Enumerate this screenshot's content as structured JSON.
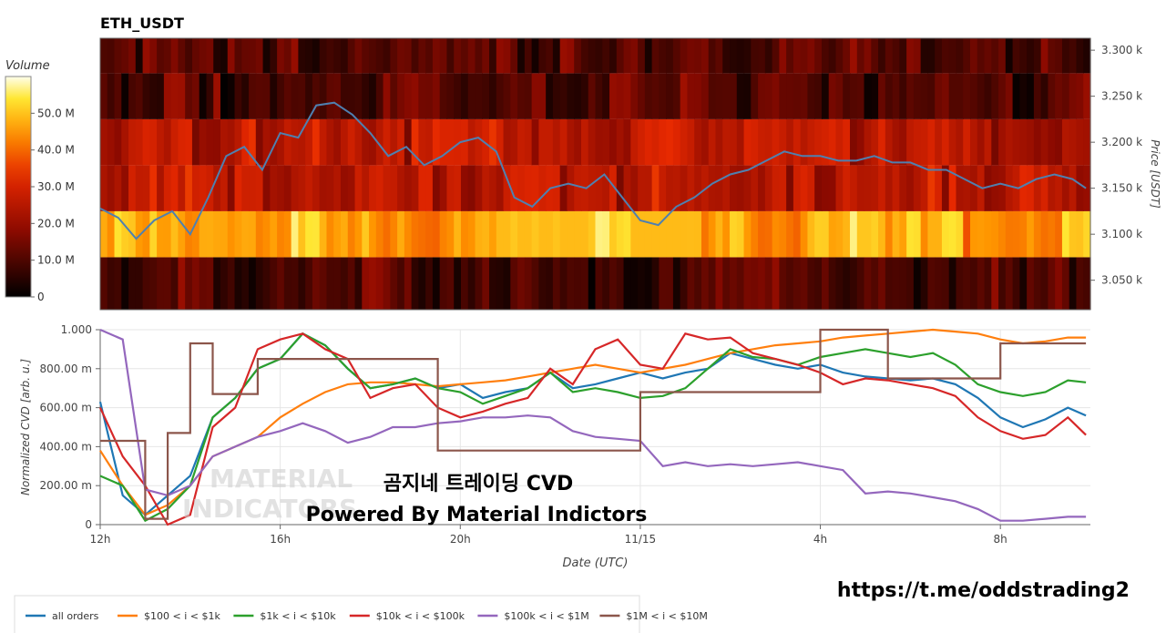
{
  "title": "ETH_USDT",
  "link": "https://t.me/oddstrading2",
  "watermark": {
    "line1": "곰지네 트레이딩 CVD",
    "line2": "Powered By Material Indictors",
    "logo_line1": "MATERIAL",
    "logo_line2": "INDICATORS"
  },
  "colors": {
    "all": "#1f77b4",
    "s100_1k": "#ff7f0e",
    "s1k_10k": "#2ca02c",
    "s10k_100k": "#d62728",
    "s100k_1m": "#9467bd",
    "s1m_10m": "#8c564b",
    "price_line": "#4f80b0"
  },
  "chart_data": [
    {
      "type": "heatmap",
      "title": "ETH_USDT",
      "ylabel": "Price [USDT]",
      "y_ticks": [
        "3.050 k",
        "3.100 k",
        "3.150 k",
        "3.200 k",
        "3.250 k",
        "3.300 k"
      ],
      "y_tick_values": [
        3050,
        3100,
        3150,
        3200,
        3250,
        3300
      ],
      "ylim": [
        3018,
        3313
      ],
      "colorbar": {
        "label": "Volume",
        "ticks": [
          "0",
          "10.0 M",
          "20.0 M",
          "30.0 M",
          "40.0 M",
          "50.0 M"
        ],
        "tick_values": [
          0,
          10,
          20,
          30,
          40,
          50
        ],
        "range": [
          0,
          60
        ]
      },
      "price_bands": [
        {
          "low": 3018,
          "high": 3075,
          "volume_profile": "low"
        },
        {
          "low": 3075,
          "high": 3125,
          "volume_profile": "high"
        },
        {
          "low": 3125,
          "high": 3175,
          "volume_profile": "medium"
        },
        {
          "low": 3175,
          "high": 3225,
          "volume_profile": "medium"
        },
        {
          "low": 3225,
          "high": 3275,
          "volume_profile": "low"
        },
        {
          "low": 3275,
          "high": 3313,
          "volume_profile": "low"
        }
      ],
      "price_series": {
        "name": "price",
        "x": [
          12,
          12.4,
          12.8,
          13.2,
          13.6,
          14,
          14.4,
          14.8,
          15.2,
          15.6,
          16,
          16.4,
          16.8,
          17.2,
          17.6,
          18,
          18.4,
          18.8,
          19.2,
          19.6,
          20,
          20.4,
          20.8,
          21.2,
          21.6,
          22,
          22.4,
          22.8,
          23.2,
          23.6,
          24,
          24.4,
          24.8,
          25.2,
          25.6,
          26,
          26.4,
          26.8,
          27.2,
          27.6,
          28,
          28.4,
          28.8,
          29.2,
          29.6,
          30,
          30.4,
          30.8,
          31.2,
          31.6,
          32,
          32.4,
          32.8,
          33.2,
          33.6,
          33.9
        ],
        "y": [
          3128,
          3118,
          3095,
          3115,
          3125,
          3100,
          3140,
          3185,
          3195,
          3170,
          3210,
          3205,
          3240,
          3243,
          3230,
          3210,
          3185,
          3195,
          3175,
          3185,
          3200,
          3205,
          3190,
          3140,
          3130,
          3150,
          3155,
          3150,
          3165,
          3140,
          3115,
          3110,
          3130,
          3140,
          3155,
          3165,
          3170,
          3180,
          3190,
          3185,
          3185,
          3180,
          3180,
          3185,
          3178,
          3178,
          3170,
          3170,
          3160,
          3150,
          3155,
          3150,
          3160,
          3165,
          3160,
          3150
        ]
      }
    },
    {
      "type": "line",
      "xlabel": "Date (UTC)",
      "ylabel": "Normalized CVD [arb. u.]",
      "x_ticks": [
        "12h",
        "16h",
        "20h",
        "11/15",
        "4h",
        "8h"
      ],
      "x_tick_values": [
        12,
        16,
        20,
        24,
        28,
        32
      ],
      "xlim": [
        12,
        34
      ],
      "y_ticks": [
        "0",
        "200.00 m",
        "400.00 m",
        "600.00 m",
        "800.00 m",
        "1.000"
      ],
      "y_tick_values": [
        0,
        0.2,
        0.4,
        0.6,
        0.8,
        1.0
      ],
      "ylim": [
        0,
        1.0
      ],
      "x": [
        12,
        12.5,
        13,
        13.5,
        14,
        14.5,
        15,
        15.5,
        16,
        16.5,
        17,
        17.5,
        18,
        18.5,
        19,
        19.5,
        20,
        20.5,
        21,
        21.5,
        22,
        22.5,
        23,
        23.5,
        24,
        24.5,
        25,
        25.5,
        26,
        26.5,
        27,
        27.5,
        28,
        28.5,
        29,
        29.5,
        30,
        30.5,
        31,
        31.5,
        32,
        32.5,
        33,
        33.5,
        33.9
      ],
      "legend_position": "bottom-left",
      "series": [
        {
          "name": "all orders",
          "color_key": "all",
          "values": [
            0.63,
            0.15,
            0.05,
            0.15,
            0.25,
            0.55,
            0.65,
            0.8,
            0.85,
            0.98,
            0.92,
            0.8,
            0.7,
            0.72,
            0.75,
            0.7,
            0.72,
            0.65,
            0.68,
            0.7,
            0.78,
            0.7,
            0.72,
            0.75,
            0.78,
            0.75,
            0.78,
            0.8,
            0.88,
            0.85,
            0.82,
            0.8,
            0.82,
            0.78,
            0.76,
            0.75,
            0.74,
            0.75,
            0.72,
            0.65,
            0.55,
            0.5,
            0.54,
            0.6,
            0.56
          ]
        },
        {
          "name": "$100 < i < $1k",
          "color_key": "s100_1k",
          "values": [
            0.38,
            0.2,
            0.05,
            0.1,
            0.2,
            0.35,
            0.4,
            0.45,
            0.55,
            0.62,
            0.68,
            0.72,
            0.73,
            0.73,
            0.72,
            0.71,
            0.72,
            0.73,
            0.74,
            0.76,
            0.78,
            0.8,
            0.82,
            0.8,
            0.78,
            0.8,
            0.82,
            0.85,
            0.88,
            0.9,
            0.92,
            0.93,
            0.94,
            0.96,
            0.97,
            0.98,
            0.99,
            1.0,
            0.99,
            0.98,
            0.95,
            0.93,
            0.94,
            0.96,
            0.96
          ]
        },
        {
          "name": "$1k < i < $10k",
          "color_key": "s1k_10k",
          "values": [
            0.25,
            0.2,
            0.02,
            0.08,
            0.2,
            0.55,
            0.65,
            0.8,
            0.85,
            0.98,
            0.92,
            0.8,
            0.7,
            0.72,
            0.75,
            0.7,
            0.68,
            0.62,
            0.66,
            0.7,
            0.78,
            0.68,
            0.7,
            0.68,
            0.65,
            0.66,
            0.7,
            0.8,
            0.9,
            0.86,
            0.85,
            0.82,
            0.86,
            0.88,
            0.9,
            0.88,
            0.86,
            0.88,
            0.82,
            0.72,
            0.68,
            0.66,
            0.68,
            0.74,
            0.73
          ]
        },
        {
          "name": "$10k < i < $100k",
          "color_key": "s10k_100k",
          "values": [
            0.6,
            0.35,
            0.2,
            0.0,
            0.05,
            0.5,
            0.6,
            0.9,
            0.95,
            0.98,
            0.9,
            0.85,
            0.65,
            0.7,
            0.72,
            0.6,
            0.55,
            0.58,
            0.62,
            0.65,
            0.8,
            0.72,
            0.9,
            0.95,
            0.82,
            0.8,
            0.98,
            0.95,
            0.96,
            0.88,
            0.85,
            0.82,
            0.78,
            0.72,
            0.75,
            0.74,
            0.72,
            0.7,
            0.66,
            0.55,
            0.48,
            0.44,
            0.46,
            0.55,
            0.46
          ]
        },
        {
          "name": "$100k < i < $1M",
          "color_key": "s100k_1m",
          "values": [
            1.0,
            0.95,
            0.18,
            0.15,
            0.2,
            0.35,
            0.4,
            0.45,
            0.48,
            0.52,
            0.48,
            0.42,
            0.45,
            0.5,
            0.5,
            0.52,
            0.53,
            0.55,
            0.55,
            0.56,
            0.55,
            0.48,
            0.45,
            0.44,
            0.43,
            0.3,
            0.32,
            0.3,
            0.31,
            0.3,
            0.31,
            0.32,
            0.3,
            0.28,
            0.16,
            0.17,
            0.16,
            0.14,
            0.12,
            0.08,
            0.02,
            0.02,
            0.03,
            0.04,
            0.04
          ]
        },
        {
          "name": "$1M < i < $10M",
          "color_key": "s1m_10m",
          "values": [
            0.43,
            0.43,
            0.03,
            0.47,
            0.93,
            0.67,
            0.67,
            0.85,
            0.85,
            0.85,
            0.85,
            0.85,
            0.85,
            0.85,
            0.85,
            0.38,
            0.38,
            0.38,
            0.38,
            0.38,
            0.38,
            0.38,
            0.38,
            0.38,
            0.68,
            0.68,
            0.68,
            0.68,
            0.68,
            0.68,
            0.68,
            0.68,
            1.0,
            1.0,
            1.0,
            0.75,
            0.75,
            0.75,
            0.75,
            0.75,
            0.93,
            0.93,
            0.93,
            0.93,
            0.93
          ]
        }
      ]
    }
  ]
}
